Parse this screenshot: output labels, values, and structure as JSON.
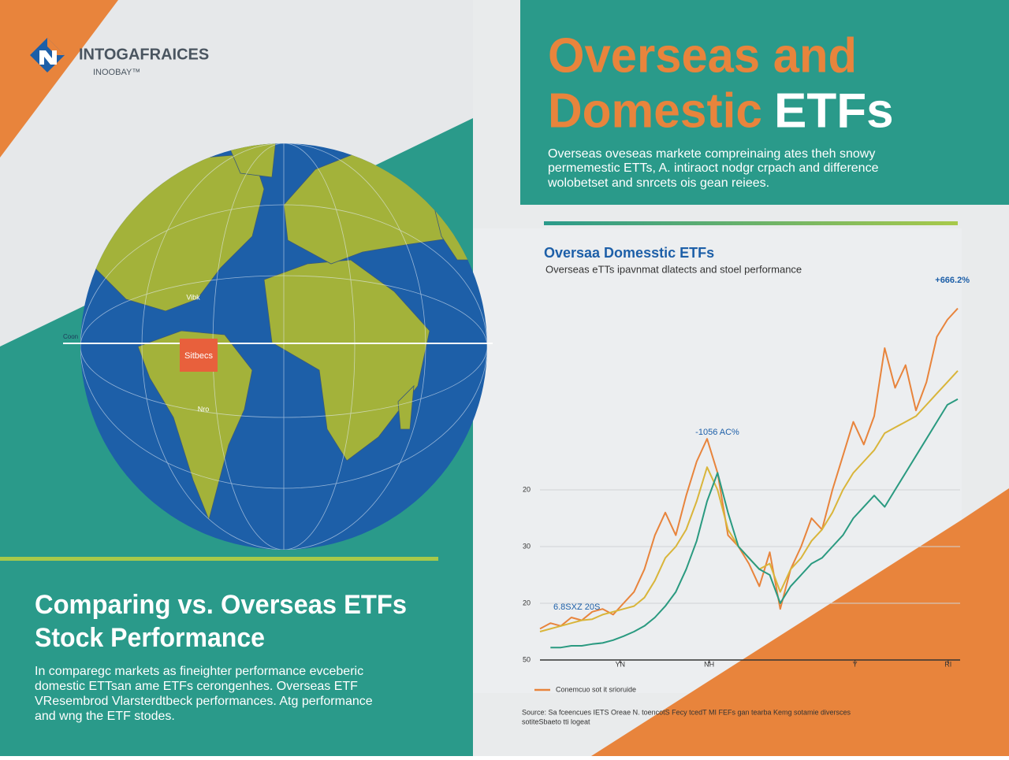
{
  "logo": {
    "name": "INTOGAFRAICES",
    "tagline": "INOOBAY™"
  },
  "header": {
    "title_line1": "Overseas and",
    "title_line2": "Domestic",
    "title_accent": "ETFs",
    "description": [
      "Overseas oveseas markete compreinaing ates theh snowy",
      "permemestic ETTs, A. intiraoct nodgr crpach and difference",
      "wolobetset and snrcets ois gean reiees."
    ]
  },
  "globe": {
    "labels": [
      "Sitbecs",
      "Vibk",
      "Nro",
      "Coon"
    ]
  },
  "hero": {
    "title": [
      "Comparing vs. Overseas ETFs",
      "Stock Performance"
    ],
    "body": [
      "In comparegc markets as fineighter performance evceberic",
      "domestic ETTsan ame ETFs cerongenhes.  Overseas ETF",
      "VResembrod Vlarsterdtbeck performances. Atg performance",
      "and wng the ETF stodes."
    ]
  },
  "chart_data": {
    "type": "line",
    "title": "Oversaa Domesstic ETFs",
    "subtitle": "Overseas eTTs ipavnmat dlatects and stoel performance",
    "annotations": [
      "+666.2%",
      "-1056 AC%",
      "6.8SXZ 20S"
    ],
    "source": [
      "Source: Sa fceencues IETS Oreae N. toencotS Fecy tcedT MI FEFs gan tearba Kemg sotamie diversces",
      "sotiteSbaeto tti logeat"
    ],
    "x": [
      0,
      2.5,
      5,
      7.5,
      10,
      12.5,
      15,
      17.5,
      20,
      22.5,
      25,
      27.5,
      30,
      32.5,
      35,
      37.5,
      40,
      42.5,
      45,
      47.5,
      50,
      52.5,
      55,
      57.5,
      60,
      62.5,
      65,
      67.5,
      70,
      72.5,
      75,
      77.5,
      80,
      82.5,
      85,
      87.5,
      90,
      92.5,
      95,
      97.5,
      100
    ],
    "xlim": [
      0,
      100
    ],
    "xticks": [
      {
        "value": 19.2,
        "label": "YN"
      },
      {
        "value": 40.5,
        "label": "NH"
      },
      {
        "value": 75.4,
        "label": "Y"
      },
      {
        "value": 97.7,
        "label": "RI"
      }
    ],
    "ylim": [
      0,
      6.5
    ],
    "yticks": [
      {
        "value": 0,
        "label": "50"
      },
      {
        "value": 1,
        "label": "20"
      },
      {
        "value": 2,
        "label": "30"
      },
      {
        "value": 3,
        "label": "20"
      }
    ],
    "grid": true,
    "series": [
      {
        "name": "Conemcuo sot it srioruide",
        "color": "#e8843c",
        "values": [
          0.55,
          0.65,
          0.6,
          0.75,
          0.7,
          0.85,
          0.9,
          0.8,
          1.0,
          1.2,
          1.6,
          2.2,
          2.6,
          2.2,
          2.9,
          3.5,
          3.9,
          3.3,
          2.2,
          2.0,
          1.7,
          1.3,
          1.9,
          0.9,
          1.6,
          2.0,
          2.5,
          2.3,
          3.0,
          3.6,
          4.2,
          3.8,
          4.3,
          5.5,
          4.8,
          5.2,
          4.4,
          4.9,
          5.7,
          6.0,
          6.2
        ]
      },
      {
        "color": "#d9b53a",
        "values": [
          0.5,
          0.55,
          0.6,
          0.65,
          0.7,
          0.72,
          0.8,
          0.85,
          0.9,
          0.95,
          1.1,
          1.4,
          1.8,
          2.0,
          2.3,
          2.8,
          3.4,
          3.0,
          2.3,
          2.0,
          1.8,
          1.6,
          1.7,
          1.2,
          1.6,
          1.8,
          2.1,
          2.3,
          2.6,
          3.0,
          3.3,
          3.5,
          3.7,
          4.0,
          4.1,
          4.2,
          4.3,
          4.5,
          4.7,
          4.9,
          5.1
        ]
      },
      {
        "color": "#2a9a80",
        "values": [
          null,
          0.22,
          0.22,
          0.25,
          0.25,
          0.28,
          0.3,
          0.35,
          0.42,
          0.5,
          0.6,
          0.75,
          0.95,
          1.2,
          1.6,
          2.1,
          2.8,
          3.3,
          2.6,
          2.0,
          1.8,
          1.6,
          1.5,
          1.0,
          1.3,
          1.5,
          1.7,
          1.8,
          2.0,
          2.2,
          2.5,
          2.7,
          2.9,
          2.7,
          3.0,
          3.3,
          3.6,
          3.9,
          4.2,
          4.5,
          4.6
        ]
      }
    ]
  }
}
